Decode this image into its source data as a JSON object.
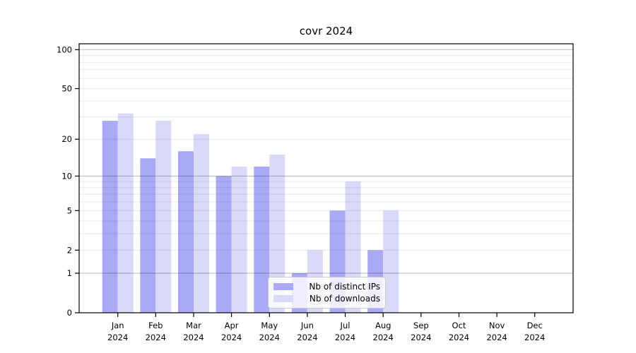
{
  "chart_data": {
    "type": "bar",
    "title": "covr 2024",
    "categories": [
      "Jan 2024",
      "Feb 2024",
      "Mar 2024",
      "Apr 2024",
      "May 2024",
      "Jun 2024",
      "Jul 2024",
      "Aug 2024",
      "Sep 2024",
      "Oct 2024",
      "Nov 2024",
      "Dec 2024"
    ],
    "series": [
      {
        "name": "Nb of distinct IPs",
        "color": "#a9a9f5",
        "values": [
          28,
          14,
          16,
          10,
          12,
          1,
          5,
          2,
          0,
          0,
          0,
          0
        ]
      },
      {
        "name": "Nb of downloads",
        "color": "#d9d9f8",
        "values": [
          32,
          28,
          22,
          12,
          15,
          2,
          9,
          5,
          0,
          0,
          0,
          0
        ]
      }
    ],
    "xlabel": "",
    "ylabel": "",
    "y_scale": "log10(1+y)",
    "y_ticks": [
      0,
      1,
      2,
      5,
      10,
      20,
      50,
      100
    ],
    "y_major_gridlines": [
      1,
      10,
      100
    ],
    "y_minor_gridlines": [
      2,
      3,
      4,
      5,
      6,
      7,
      8,
      9,
      20,
      30,
      40,
      50,
      60,
      70,
      80,
      90
    ],
    "ylim": [
      0,
      111
    ],
    "grid": "on",
    "legend_position": "bottom-center",
    "colors": {
      "spine": "#000000",
      "minor_grid": "rgba(0,0,0,0.085)",
      "major_grid": "rgba(0,0,0,0.28)",
      "text": "#000000"
    }
  }
}
